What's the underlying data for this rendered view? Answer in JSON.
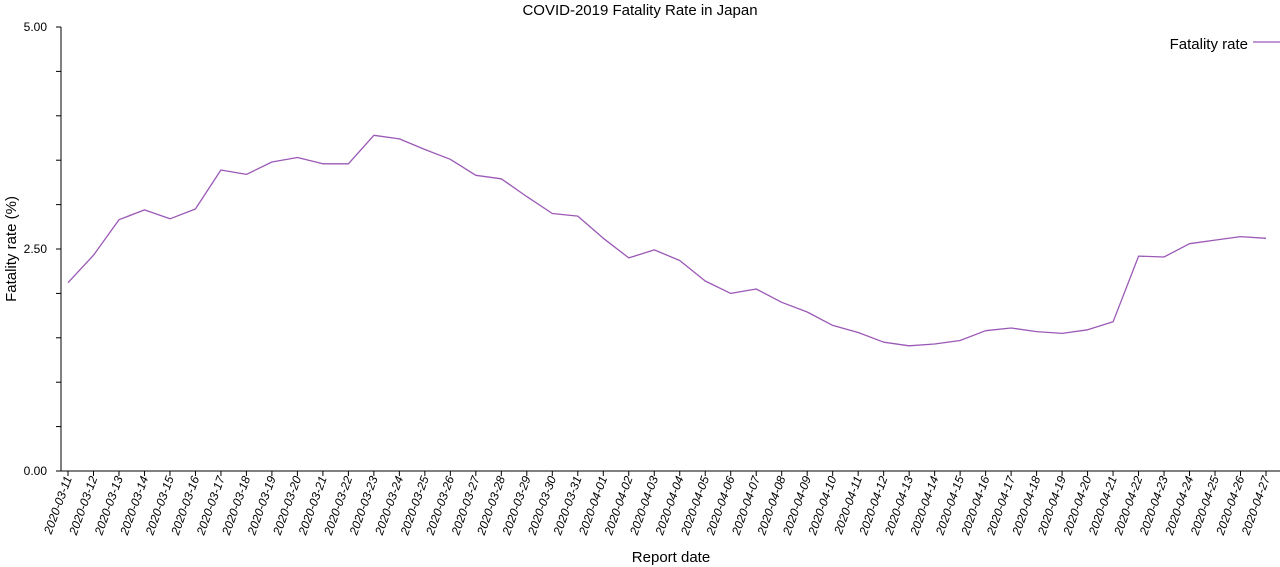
{
  "chart_data": {
    "type": "line",
    "title": "COVID-2019 Fatality Rate in Japan",
    "xlabel": "Report date",
    "ylabel": "Fatality rate (%)",
    "ylim": [
      0,
      5
    ],
    "y_tick_labels": [
      "0.00",
      "2.50",
      "5.00"
    ],
    "grid": false,
    "legend_position": "top-right",
    "line_color": "#9b59b6",
    "categories": [
      "2020-03-11",
      "2020-03-12",
      "2020-03-13",
      "2020-03-14",
      "2020-03-15",
      "2020-03-16",
      "2020-03-17",
      "2020-03-18",
      "2020-03-19",
      "2020-03-20",
      "2020-03-21",
      "2020-03-22",
      "2020-03-23",
      "2020-03-24",
      "2020-03-25",
      "2020-03-26",
      "2020-03-27",
      "2020-03-28",
      "2020-03-29",
      "2020-03-30",
      "2020-03-31",
      "2020-04-01",
      "2020-04-02",
      "2020-04-03",
      "2020-04-04",
      "2020-04-05",
      "2020-04-06",
      "2020-04-07",
      "2020-04-08",
      "2020-04-09",
      "2020-04-10",
      "2020-04-11",
      "2020-04-12",
      "2020-04-13",
      "2020-04-14",
      "2020-04-15",
      "2020-04-16",
      "2020-04-17",
      "2020-04-18",
      "2020-04-19",
      "2020-04-20",
      "2020-04-21",
      "2020-04-22",
      "2020-04-23",
      "2020-04-24",
      "2020-04-25",
      "2020-04-26",
      "2020-04-27"
    ],
    "series": [
      {
        "name": "Fatality rate",
        "values": [
          2.12,
          2.43,
          2.83,
          2.94,
          2.84,
          2.95,
          3.39,
          3.34,
          3.48,
          3.53,
          3.46,
          3.46,
          3.78,
          3.74,
          3.62,
          3.51,
          3.33,
          3.29,
          3.09,
          2.9,
          2.87,
          2.62,
          2.4,
          2.49,
          2.37,
          2.14,
          2.0,
          2.05,
          1.9,
          1.79,
          1.64,
          1.56,
          1.45,
          1.41,
          1.43,
          1.47,
          1.58,
          1.61,
          1.57,
          1.55,
          1.59,
          1.68,
          2.42,
          2.41,
          2.56,
          2.6,
          2.64,
          2.62
        ]
      }
    ]
  }
}
